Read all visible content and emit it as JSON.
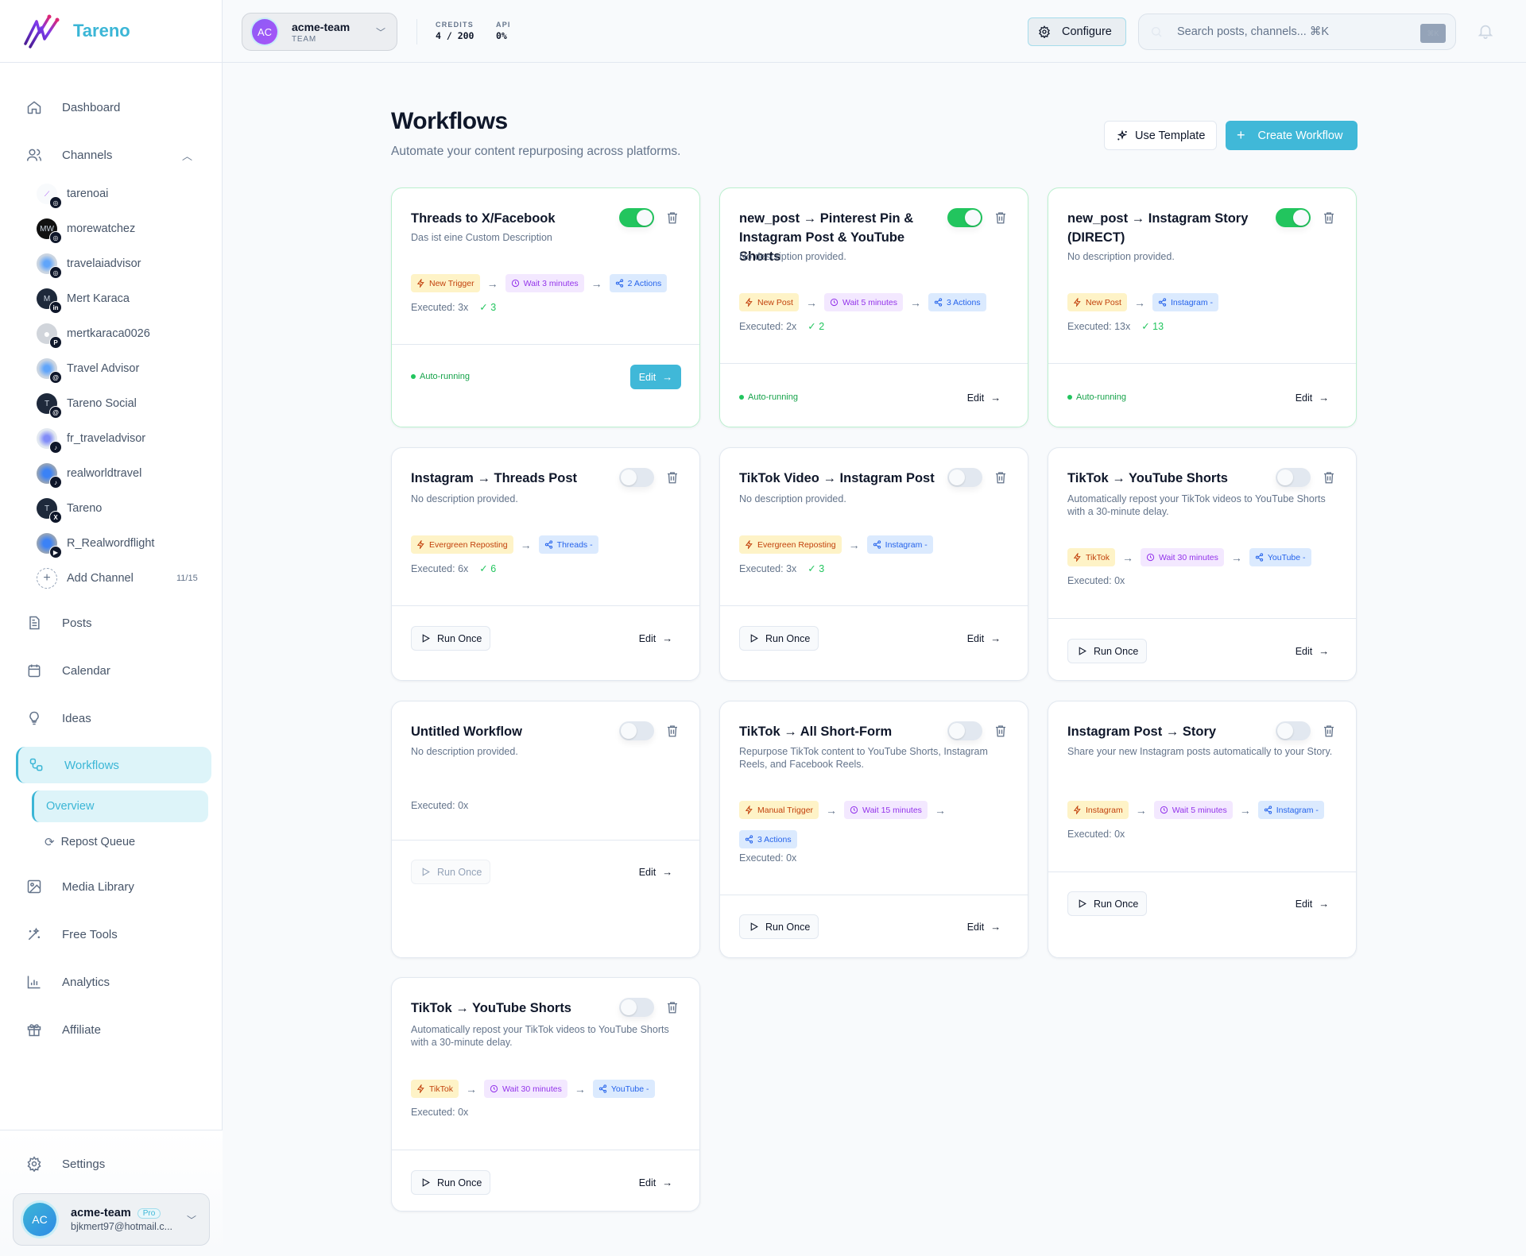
{
  "brand": {
    "name": "Tareno"
  },
  "header": {
    "team": {
      "initials": "AC",
      "name": "acme-team",
      "role": "TEAM"
    },
    "credits": {
      "label": "CREDITS",
      "value": "4 / 200"
    },
    "api": {
      "label": "API",
      "value": "0%"
    },
    "configure_label": "Configure",
    "search_placeholder": "Search posts, channels... ⌘K",
    "search_kbd": "⌘K"
  },
  "sidebar": {
    "nav": {
      "dashboard": "Dashboard",
      "channels": "Channels",
      "posts": "Posts",
      "calendar": "Calendar",
      "ideas": "Ideas",
      "workflows": "Workflows",
      "media_library": "Media Library",
      "free_tools": "Free Tools",
      "analytics": "Analytics",
      "affiliate": "Affiliate",
      "settings": "Settings"
    },
    "channels": [
      {
        "name": "tarenoai",
        "initial": "",
        "platform": "instagram",
        "badge": "◎",
        "avatar_bg": "#f1f5f9"
      },
      {
        "name": "morewatchez",
        "initial": "MW",
        "platform": "instagram",
        "badge": "◎",
        "avatar_bg": "#111111"
      },
      {
        "name": "travelaiadvisor",
        "initial": "",
        "platform": "instagram",
        "badge": "◎",
        "avatar_bg": "#cbd5e1"
      },
      {
        "name": "Mert Karaca",
        "initial": "M",
        "platform": "linkedin",
        "badge": "in",
        "avatar_bg": "#1e293b"
      },
      {
        "name": "mertkaraca0026",
        "initial": "",
        "platform": "pinterest",
        "badge": "P",
        "avatar_bg": "#d1d5db"
      },
      {
        "name": "Travel Advisor",
        "initial": "",
        "platform": "threads",
        "badge": "@",
        "avatar_bg": "#cbd5e1"
      },
      {
        "name": "Tareno Social",
        "initial": "T",
        "platform": "threads",
        "badge": "@",
        "avatar_bg": "#1e293b"
      },
      {
        "name": "fr_traveladvisor",
        "initial": "",
        "platform": "tiktok",
        "badge": "♪",
        "avatar_bg": "#e2e8f0"
      },
      {
        "name": "realworldtravel",
        "initial": "",
        "platform": "tiktok",
        "badge": "♪",
        "avatar_bg": "#94a3b8"
      },
      {
        "name": "Tareno",
        "initial": "T",
        "platform": "x",
        "badge": "X",
        "avatar_bg": "#1e293b"
      },
      {
        "name": "R_Realwordflight",
        "initial": "",
        "platform": "youtube",
        "badge": "▶",
        "avatar_bg": "#94a3b8"
      }
    ],
    "add_channel": {
      "label": "Add Channel",
      "count": "11/15"
    },
    "workflows_sub": {
      "overview": "Overview",
      "repost_queue": "Repost Queue"
    },
    "account": {
      "initials": "AC",
      "name": "acme-team",
      "plan": "Pro",
      "email": "bjkmert97@hotmail.c..."
    }
  },
  "page": {
    "title": "Workflows",
    "subtitle": "Automate your content repurposing across platforms.",
    "use_template_label": "Use Template",
    "create_workflow_label": "Create Workflow"
  },
  "common": {
    "run_once": "Run Once",
    "edit": "Edit",
    "auto_running": "Auto-running",
    "arrow": "→"
  },
  "workflows": [
    {
      "title": "Threads to X/Facebook",
      "description": "Das ist eine Custom Description",
      "enabled": true,
      "steps": [
        {
          "type": "trigger",
          "label": "New Trigger"
        },
        {
          "type": "wait",
          "label": "Wait 3 minutes"
        },
        {
          "type": "action",
          "label": "2 Actions"
        }
      ],
      "executed": "Executed: 3x",
      "success": "✓ 3",
      "footer": "auto-running",
      "edit_primary": true
    },
    {
      "title": "new_post → Pinterest Pin & Instagram Post & YouTube Shorts",
      "description": "No description provided.",
      "enabled": true,
      "steps": [
        {
          "type": "trigger",
          "label": "New Post"
        },
        {
          "type": "wait",
          "label": "Wait 5 minutes"
        },
        {
          "type": "action",
          "label": "3 Actions"
        }
      ],
      "executed": "Executed: 2x",
      "success": "✓ 2",
      "footer": "auto-running",
      "edit_primary": false
    },
    {
      "title": "new_post → Instagram Story (DIRECT)",
      "description": "No description provided.",
      "enabled": true,
      "steps": [
        {
          "type": "trigger",
          "label": "New Post"
        },
        {
          "type": "action",
          "label": "Instagram -"
        }
      ],
      "executed": "Executed: 13x",
      "success": "✓ 13",
      "footer": "auto-running",
      "edit_primary": false
    },
    {
      "title": "Instagram → Threads Post",
      "description": "No description provided.",
      "enabled": false,
      "steps": [
        {
          "type": "trigger",
          "label": "Evergreen Reposting"
        },
        {
          "type": "action",
          "label": "Threads -"
        }
      ],
      "executed": "Executed: 6x",
      "success": "✓ 6",
      "footer": "run-once"
    },
    {
      "title": "TikTok Video → Instagram Post",
      "description": "No description provided.",
      "enabled": false,
      "steps": [
        {
          "type": "trigger",
          "label": "Evergreen Reposting"
        },
        {
          "type": "action",
          "label": "Instagram -"
        }
      ],
      "executed": "Executed: 3x",
      "success": "✓ 3",
      "footer": "run-once"
    },
    {
      "title": "TikTok → YouTube Shorts",
      "description": "Automatically repost your TikTok videos to YouTube Shorts with a 30-minute delay.",
      "enabled": false,
      "steps": [
        {
          "type": "trigger",
          "label": "TikTok"
        },
        {
          "type": "wait",
          "label": "Wait 30 minutes"
        },
        {
          "type": "action",
          "label": "YouTube -"
        }
      ],
      "executed": "Executed: 0x",
      "success": "",
      "footer": "run-once"
    },
    {
      "title": "Untitled Workflow",
      "description": "No description provided.",
      "enabled": false,
      "steps": [],
      "executed": "Executed: 0x",
      "success": "",
      "footer": "run-once-disabled"
    },
    {
      "title": "TikTok → All Short-Form",
      "description": "Repurpose TikTok content to YouTube Shorts, Instagram Reels, and Facebook Reels.",
      "enabled": false,
      "steps": [
        {
          "type": "trigger",
          "label": "Manual Trigger"
        },
        {
          "type": "wait",
          "label": "Wait 15 minutes"
        },
        {
          "type": "action",
          "label": "3 Actions"
        }
      ],
      "executed": "Executed: 0x",
      "success": "",
      "footer": "run-once"
    },
    {
      "title": "Instagram Post → Story",
      "description": "Share your new Instagram posts automatically to your Story.",
      "enabled": false,
      "steps": [
        {
          "type": "trigger",
          "label": "Instagram"
        },
        {
          "type": "wait",
          "label": "Wait 5 minutes"
        },
        {
          "type": "action",
          "label": "Instagram -"
        }
      ],
      "executed": "Executed: 0x",
      "success": "",
      "footer": "run-once"
    },
    {
      "title": "TikTok → YouTube Shorts",
      "description": "Automatically repost your TikTok videos to YouTube Shorts with a 30-minute delay.",
      "enabled": false,
      "steps": [
        {
          "type": "trigger",
          "label": "TikTok"
        },
        {
          "type": "wait",
          "label": "Wait 30 minutes"
        },
        {
          "type": "action",
          "label": "YouTube -"
        }
      ],
      "executed": "Executed: 0x",
      "success": "",
      "footer": "run-once"
    }
  ],
  "colors": {
    "accent": "#40b8d8",
    "toggle_on": "#22c55e",
    "trigger_bg": "#fef3c7",
    "trigger_fg": "#c2410c",
    "wait_bg": "#f3e8ff",
    "wait_fg": "#9333ea",
    "action_bg": "#dbeafe",
    "action_fg": "#2563eb"
  }
}
